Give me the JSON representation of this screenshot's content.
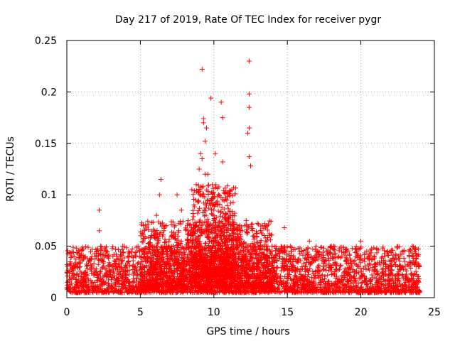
{
  "chart_data": {
    "type": "scatter",
    "title": "Day 217 of 2019, Rate Of TEC Index for receiver pygr",
    "xlabel": "GPS time / hours",
    "ylabel": "ROTI / TECUs",
    "xlim": [
      0,
      25
    ],
    "ylim": [
      0,
      0.25
    ],
    "xticks": [
      0,
      5,
      10,
      15,
      20,
      25
    ],
    "xtick_labels": [
      "0",
      "5",
      "10",
      "15",
      "20",
      "25"
    ],
    "yticks": [
      0,
      0.05,
      0.1,
      0.15,
      0.2,
      0.25
    ],
    "ytick_labels": [
      "0",
      "0.05",
      "0.1",
      "0.15",
      "0.2",
      "0.25"
    ],
    "grid": true,
    "marker": "+",
    "color": "#ff0000",
    "series": [
      {
        "name": "ROTI",
        "x": [
          0.2,
          0.5,
          0.9,
          1.3,
          1.7,
          2.0,
          2.2,
          2.2,
          2.3,
          2.6,
          2.9,
          3.3,
          3.8,
          4.2,
          4.6,
          5.0,
          5.2,
          5.5,
          5.8,
          6.1,
          6.3,
          6.4,
          6.5,
          6.6,
          6.8,
          7.0,
          7.3,
          7.5,
          7.8,
          8.2,
          8.5,
          8.8,
          9.0,
          9.1,
          9.2,
          9.3,
          9.4,
          9.5,
          9.6,
          9.7,
          9.8,
          9.9,
          10.0,
          10.1,
          10.3,
          10.5,
          10.6,
          10.7,
          10.9,
          11.1,
          11.3,
          11.6,
          11.9,
          12.1,
          12.3,
          12.4,
          12.5,
          12.7,
          13.0,
          13.3,
          13.6,
          14.0,
          14.4,
          14.8,
          15.2,
          15.6,
          16.0,
          16.5,
          17.0,
          17.5,
          18.0,
          18.5,
          19.0,
          19.5,
          20.0,
          20.5,
          21.0,
          21.5,
          22.0,
          22.5,
          23.0,
          23.5,
          23.9,
          9.2,
          9.4,
          9.6,
          10.0,
          10.6,
          12.4,
          12.4,
          12.4,
          12.4,
          9.3,
          9.5,
          10.1,
          12.2,
          8.9
        ],
        "y": [
          0.025,
          0.02,
          0.03,
          0.018,
          0.04,
          0.028,
          0.085,
          0.065,
          0.05,
          0.022,
          0.03,
          0.035,
          0.02,
          0.045,
          0.025,
          0.03,
          0.07,
          0.04,
          0.05,
          0.08,
          0.1,
          0.115,
          0.06,
          0.045,
          0.05,
          0.03,
          0.06,
          0.1,
          0.085,
          0.07,
          0.105,
          0.11,
          0.125,
          0.14,
          0.222,
          0.17,
          0.152,
          0.09,
          0.12,
          0.07,
          0.194,
          0.11,
          0.075,
          0.09,
          0.07,
          0.19,
          0.175,
          0.06,
          0.045,
          0.1,
          0.08,
          0.05,
          0.04,
          0.07,
          0.16,
          0.23,
          0.128,
          0.06,
          0.05,
          0.07,
          0.04,
          0.035,
          0.045,
          0.068,
          0.05,
          0.035,
          0.03,
          0.055,
          0.04,
          0.035,
          0.05,
          0.04,
          0.045,
          0.035,
          0.055,
          0.04,
          0.03,
          0.025,
          0.045,
          0.03,
          0.035,
          0.05,
          0.03,
          0.135,
          0.12,
          0.095,
          0.085,
          0.132,
          0.198,
          0.185,
          0.137,
          0.165,
          0.174,
          0.165,
          0.14,
          0.075,
          0.093
        ],
        "noise": [
          {
            "x_range": [
              0,
              24
            ],
            "y_range": [
              0.005,
              0.05
            ]
          },
          {
            "x_range": [
              5,
              14
            ],
            "y_range": [
              0.01,
              0.075
            ]
          },
          {
            "x_range": [
              8.5,
              11.5
            ],
            "y_range": [
              0.02,
              0.11
            ]
          }
        ]
      }
    ]
  }
}
